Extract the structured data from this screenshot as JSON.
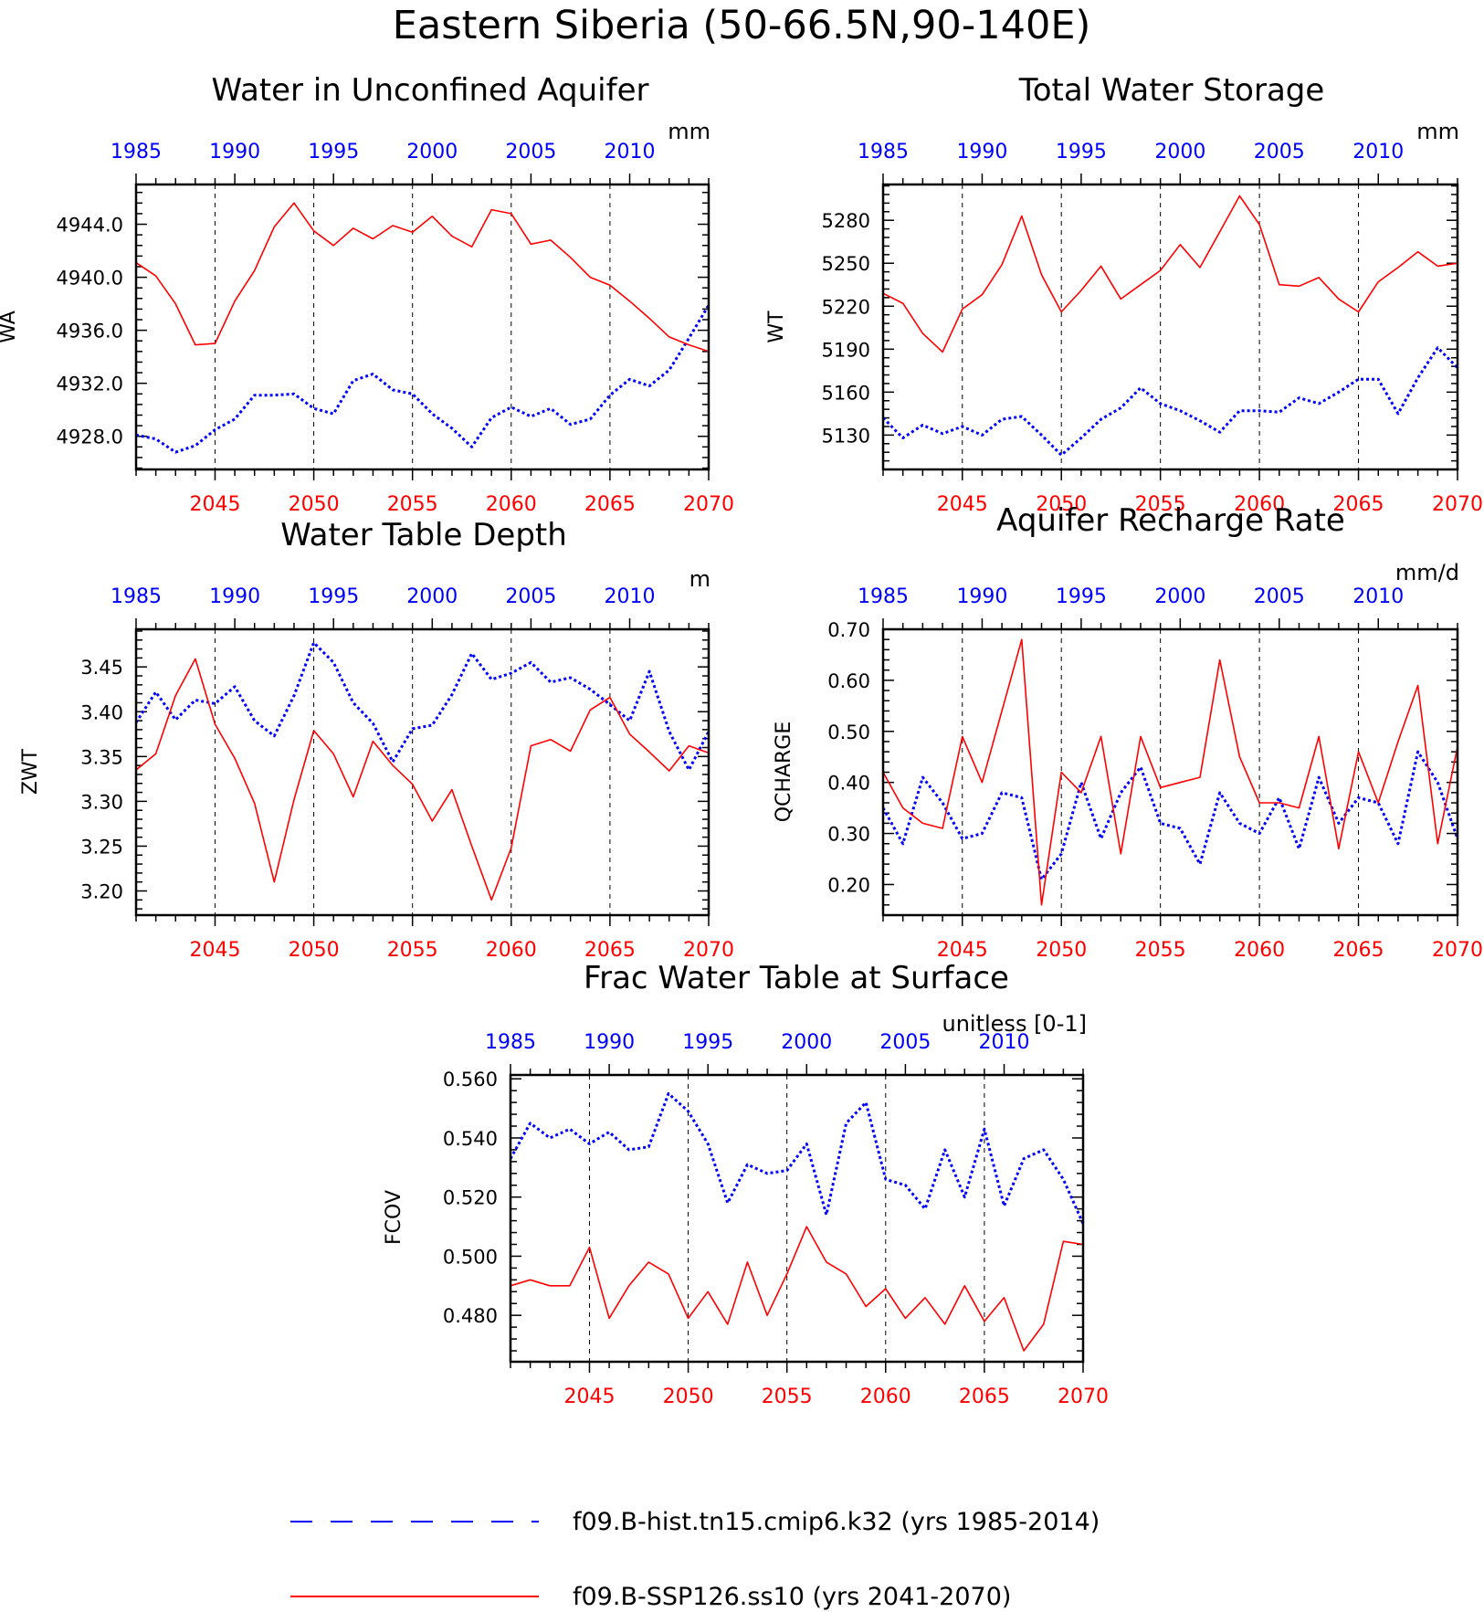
{
  "figure": {
    "title": "Eastern Siberia (50-66.5N,90-140E)",
    "colors": {
      "hist": "#0000ff",
      "ssp": "#ff0000",
      "axis": "#000000",
      "grid": "#000000"
    },
    "legend": [
      {
        "label": "f09.B-hist.tn15.cmip6.k32 (yrs 1985-2014)",
        "color": "#0000ff",
        "style": "dashed"
      },
      {
        "label": "f09.B-SSP126.ss10 (yrs 2041-2070)",
        "color": "#ff0000",
        "style": "solid"
      }
    ]
  },
  "chart_data": [
    {
      "type": "line",
      "title": "Water in Unconfined Aquifer",
      "ylabel": "WA",
      "units": "mm",
      "ylim": [
        4925.5,
        4947.0
      ],
      "yticks": [
        4928.0,
        4932.0,
        4936.0,
        4940.0,
        4944.0
      ],
      "ytick_labels": [
        "4928.0",
        "4932.0",
        "4936.0",
        "4940.0",
        "4944.0"
      ],
      "x_bottom": {
        "ticks": [
          2045,
          2050,
          2055,
          2060,
          2065,
          2070
        ],
        "range": [
          2041,
          2070
        ]
      },
      "x_top": {
        "ticks": [
          1985,
          1990,
          1995,
          2000,
          2005,
          2010
        ],
        "range": [
          1985,
          2014
        ]
      },
      "grid": "dashed vertical lines at bottom-axis major ticks",
      "series": [
        {
          "name": "f09.B-hist.tn15.cmip6.k32",
          "years": "1985-2014",
          "values": [
            4928.1,
            4927.8,
            4926.8,
            4927.3,
            4928.5,
            4929.3,
            4931.1,
            4931.1,
            4931.2,
            4930.1,
            4929.7,
            4932.2,
            4932.7,
            4931.5,
            4931.2,
            4929.7,
            4928.6,
            4927.2,
            4929.4,
            4930.2,
            4929.5,
            4930.1,
            4928.9,
            4929.3,
            4931.1,
            4932.3,
            4931.8,
            4933.0,
            4935.4,
            4937.9
          ]
        },
        {
          "name": "f09.B-SSP126.ss10",
          "years": "2041-2070",
          "values": [
            4941.1,
            4940.1,
            4938.0,
            4934.9,
            4935.0,
            4938.2,
            4940.5,
            4943.8,
            4945.6,
            4943.5,
            4942.4,
            4943.7,
            4942.9,
            4943.9,
            4943.4,
            4944.6,
            4943.1,
            4942.3,
            4945.1,
            4944.8,
            4942.5,
            4942.8,
            4941.5,
            4940.0,
            4939.4,
            4938.2,
            4936.9,
            4935.5,
            4934.9,
            4934.4
          ]
        }
      ]
    },
    {
      "type": "line",
      "title": "Total Water Storage",
      "ylabel": "WT",
      "units": "mm",
      "ylim": [
        5106,
        5305
      ],
      "yticks": [
        5130,
        5160,
        5190,
        5220,
        5250,
        5280
      ],
      "ytick_labels": [
        "5130",
        "5160",
        "5190",
        "5220",
        "5250",
        "5280"
      ],
      "x_bottom": {
        "ticks": [
          2045,
          2050,
          2055,
          2060,
          2065,
          2070
        ],
        "range": [
          2041,
          2070
        ]
      },
      "x_top": {
        "ticks": [
          1985,
          1990,
          1995,
          2000,
          2005,
          2010
        ],
        "range": [
          1985,
          2014
        ]
      },
      "grid": "dashed vertical lines at bottom-axis major ticks",
      "series": [
        {
          "name": "f09.B-hist.tn15.cmip6.k32",
          "years": "1985-2014",
          "values": [
            5142,
            5128,
            5137,
            5131,
            5136,
            5130,
            5141,
            5143,
            5130,
            5116,
            5128,
            5141,
            5149,
            5163,
            5152,
            5147,
            5140,
            5132,
            5147,
            5147,
            5146,
            5156,
            5152,
            5160,
            5169,
            5169,
            5145,
            5170,
            5191,
            5177
          ]
        },
        {
          "name": "f09.B-SSP126.ss10",
          "years": "2041-2070",
          "values": [
            5229,
            5222,
            5201,
            5188,
            5218,
            5228,
            5249,
            5283,
            5242,
            5216,
            5231,
            5248,
            5225,
            5235,
            5245,
            5263,
            5247,
            5272,
            5297,
            5277,
            5235,
            5234,
            5240,
            5225,
            5216,
            5237,
            5247,
            5258,
            5248,
            5250
          ]
        }
      ]
    },
    {
      "type": "line",
      "title": "Water Table Depth",
      "ylabel": "ZWT",
      "units": "m",
      "ylim": [
        3.173,
        3.492
      ],
      "yticks": [
        3.2,
        3.25,
        3.3,
        3.35,
        3.4,
        3.45
      ],
      "ytick_labels": [
        "3.20",
        "3.25",
        "3.30",
        "3.35",
        "3.40",
        "3.45"
      ],
      "x_bottom": {
        "ticks": [
          2045,
          2050,
          2055,
          2060,
          2065,
          2070
        ],
        "range": [
          2041,
          2070
        ]
      },
      "x_top": {
        "ticks": [
          1985,
          1990,
          1995,
          2000,
          2005,
          2010
        ],
        "range": [
          1985,
          2014
        ]
      },
      "grid": "dashed vertical lines at bottom-axis major ticks",
      "series": [
        {
          "name": "f09.B-hist.tn15.cmip6.k32",
          "years": "1985-2014",
          "values": [
            3.388,
            3.422,
            3.391,
            3.413,
            3.409,
            3.428,
            3.39,
            3.373,
            3.418,
            3.477,
            3.455,
            3.41,
            3.387,
            3.344,
            3.381,
            3.385,
            3.419,
            3.465,
            3.436,
            3.443,
            3.455,
            3.433,
            3.438,
            3.425,
            3.408,
            3.39,
            3.445,
            3.378,
            3.335,
            3.378
          ]
        },
        {
          "name": "f09.B-SSP126.ss10",
          "years": "2041-2070",
          "values": [
            3.335,
            3.353,
            3.418,
            3.459,
            3.386,
            3.348,
            3.298,
            3.21,
            3.302,
            3.379,
            3.353,
            3.305,
            3.367,
            3.34,
            3.319,
            3.278,
            3.313,
            3.25,
            3.19,
            3.248,
            3.362,
            3.369,
            3.356,
            3.402,
            3.416,
            3.375,
            3.355,
            3.334,
            3.362,
            3.354
          ]
        }
      ]
    },
    {
      "type": "line",
      "title": "Aquifer Recharge Rate",
      "ylabel": "QCHARGE",
      "units": "mm/d",
      "ylim": [
        0.14,
        0.7
      ],
      "yticks": [
        0.2,
        0.3,
        0.4,
        0.5,
        0.6,
        0.7
      ],
      "ytick_labels": [
        "0.20",
        "0.30",
        "0.40",
        "0.50",
        "0.60",
        "0.70"
      ],
      "x_bottom": {
        "ticks": [
          2045,
          2050,
          2055,
          2060,
          2065,
          2070
        ],
        "range": [
          2041,
          2070
        ]
      },
      "x_top": {
        "ticks": [
          1985,
          1990,
          1995,
          2000,
          2005,
          2010
        ],
        "range": [
          1985,
          2014
        ]
      },
      "grid": "dashed vertical lines at bottom-axis major ticks",
      "series": [
        {
          "name": "f09.B-hist.tn15.cmip6.k32",
          "years": "1985-2014",
          "values": [
            0.35,
            0.28,
            0.41,
            0.36,
            0.29,
            0.3,
            0.38,
            0.37,
            0.21,
            0.26,
            0.4,
            0.29,
            0.38,
            0.43,
            0.32,
            0.31,
            0.24,
            0.38,
            0.32,
            0.3,
            0.37,
            0.27,
            0.41,
            0.32,
            0.37,
            0.36,
            0.28,
            0.46,
            0.4,
            0.29
          ]
        },
        {
          "name": "f09.B-SSP126.ss10",
          "years": "2041-2070",
          "values": [
            0.42,
            0.35,
            0.32,
            0.31,
            0.49,
            0.4,
            0.54,
            0.68,
            0.16,
            0.42,
            0.38,
            0.49,
            0.26,
            0.49,
            0.39,
            0.4,
            0.41,
            0.64,
            0.45,
            0.36,
            0.36,
            0.35,
            0.49,
            0.27,
            0.46,
            0.36,
            0.48,
            0.59,
            0.28,
            0.47
          ]
        }
      ]
    },
    {
      "type": "line",
      "title": "Frac Water Table at Surface",
      "ylabel": "FCOV",
      "units": "unitless [0-1]",
      "ylim": [
        0.4643,
        0.5613
      ],
      "yticks": [
        0.48,
        0.5,
        0.52,
        0.54,
        0.56
      ],
      "ytick_labels": [
        "0.480",
        "0.500",
        "0.520",
        "0.540",
        "0.560"
      ],
      "x_bottom": {
        "ticks": [
          2045,
          2050,
          2055,
          2060,
          2065,
          2070
        ],
        "range": [
          2041,
          2070
        ]
      },
      "x_top": {
        "ticks": [
          1985,
          1990,
          1995,
          2000,
          2005,
          2010
        ],
        "range": [
          1985,
          2014
        ]
      },
      "grid": "dashed vertical lines at bottom-axis major ticks",
      "series": [
        {
          "name": "f09.B-hist.tn15.cmip6.k32",
          "years": "1985-2014",
          "values": [
            0.533,
            0.545,
            0.54,
            0.543,
            0.538,
            0.542,
            0.536,
            0.537,
            0.555,
            0.549,
            0.538,
            0.518,
            0.531,
            0.528,
            0.529,
            0.538,
            0.514,
            0.545,
            0.552,
            0.526,
            0.524,
            0.516,
            0.536,
            0.52,
            0.543,
            0.517,
            0.533,
            0.536,
            0.526,
            0.511
          ]
        },
        {
          "name": "f09.B-SSP126.ss10",
          "years": "2041-2070",
          "values": [
            0.49,
            0.492,
            0.49,
            0.49,
            0.503,
            0.479,
            0.49,
            0.498,
            0.494,
            0.479,
            0.488,
            0.477,
            0.498,
            0.48,
            0.494,
            0.51,
            0.498,
            0.494,
            0.483,
            0.489,
            0.479,
            0.486,
            0.477,
            0.49,
            0.478,
            0.486,
            0.468,
            0.477,
            0.505,
            0.504
          ]
        }
      ]
    }
  ]
}
